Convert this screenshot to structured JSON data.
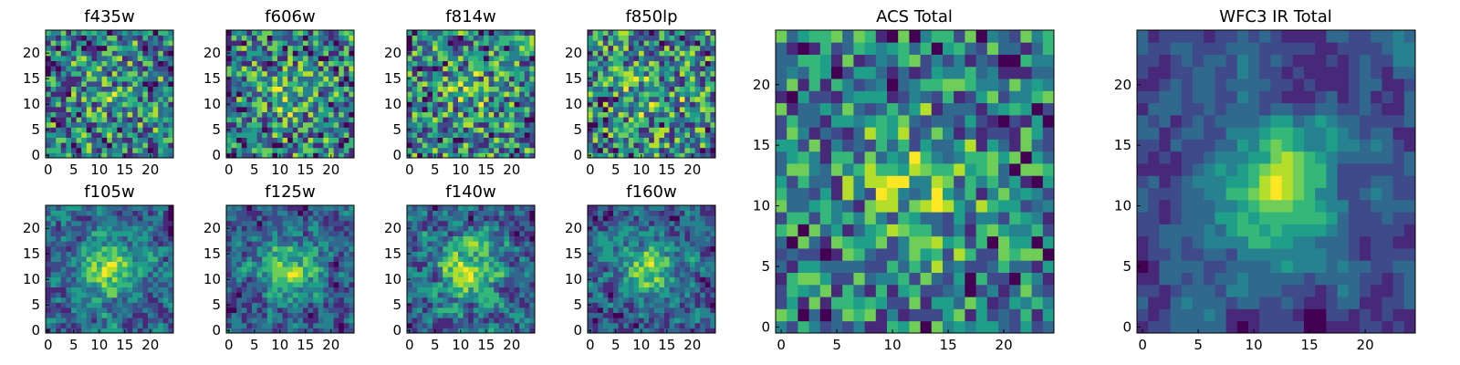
{
  "chart_data": [
    {
      "type": "heatmap",
      "title": "f435w",
      "x_ticks": [
        "0",
        "5",
        "10",
        "15",
        "20"
      ],
      "y_ticks": [
        "0",
        "5",
        "10",
        "15",
        "20"
      ],
      "xlim": [
        0,
        24
      ],
      "ylim": [
        0,
        24
      ],
      "grid_size": 25,
      "colormap": "viridis",
      "seed": 11,
      "smooth": 0,
      "radial": 0.2
    },
    {
      "type": "heatmap",
      "title": "f606w",
      "x_ticks": [
        "0",
        "5",
        "10",
        "15",
        "20"
      ],
      "y_ticks": [
        "0",
        "5",
        "10",
        "15",
        "20"
      ],
      "xlim": [
        0,
        24
      ],
      "ylim": [
        0,
        24
      ],
      "grid_size": 25,
      "colormap": "viridis",
      "seed": 23,
      "smooth": 0,
      "radial": 0.25
    },
    {
      "type": "heatmap",
      "title": "f814w",
      "x_ticks": [
        "0",
        "5",
        "10",
        "15",
        "20"
      ],
      "y_ticks": [
        "0",
        "5",
        "10",
        "15",
        "20"
      ],
      "xlim": [
        0,
        24
      ],
      "ylim": [
        0,
        24
      ],
      "grid_size": 25,
      "colormap": "viridis",
      "seed": 37,
      "smooth": 0,
      "radial": 0.2
    },
    {
      "type": "heatmap",
      "title": "f850lp",
      "x_ticks": [
        "0",
        "5",
        "10",
        "15",
        "20"
      ],
      "y_ticks": [
        "0",
        "5",
        "10",
        "15",
        "20"
      ],
      "xlim": [
        0,
        24
      ],
      "ylim": [
        0,
        24
      ],
      "grid_size": 25,
      "colormap": "viridis",
      "seed": 41,
      "smooth": 0,
      "radial": 0.15
    },
    {
      "type": "heatmap",
      "title": "f105w",
      "x_ticks": [
        "0",
        "5",
        "10",
        "15",
        "20"
      ],
      "y_ticks": [
        "0",
        "5",
        "10",
        "15",
        "20"
      ],
      "xlim": [
        0,
        24
      ],
      "ylim": [
        0,
        24
      ],
      "grid_size": 25,
      "colormap": "viridis",
      "seed": 53,
      "smooth": 1,
      "radial": 0.6
    },
    {
      "type": "heatmap",
      "title": "f125w",
      "x_ticks": [
        "0",
        "5",
        "10",
        "15",
        "20"
      ],
      "y_ticks": [
        "0",
        "5",
        "10",
        "15",
        "20"
      ],
      "xlim": [
        0,
        24
      ],
      "ylim": [
        0,
        24
      ],
      "grid_size": 25,
      "colormap": "viridis",
      "seed": 67,
      "smooth": 1,
      "radial": 0.55
    },
    {
      "type": "heatmap",
      "title": "f140w",
      "x_ticks": [
        "0",
        "5",
        "10",
        "15",
        "20"
      ],
      "y_ticks": [
        "0",
        "5",
        "10",
        "15",
        "20"
      ],
      "xlim": [
        0,
        24
      ],
      "ylim": [
        0,
        24
      ],
      "grid_size": 25,
      "colormap": "viridis",
      "seed": 71,
      "smooth": 1,
      "radial": 0.45
    },
    {
      "type": "heatmap",
      "title": "f160w",
      "x_ticks": [
        "0",
        "5",
        "10",
        "15",
        "20"
      ],
      "y_ticks": [
        "0",
        "5",
        "10",
        "15",
        "20"
      ],
      "xlim": [
        0,
        24
      ],
      "ylim": [
        0,
        24
      ],
      "grid_size": 25,
      "colormap": "viridis",
      "seed": 83,
      "smooth": 1,
      "radial": 0.6
    },
    {
      "type": "heatmap",
      "title": "ACS Total",
      "x_ticks": [
        "0",
        "5",
        "10",
        "15",
        "20"
      ],
      "y_ticks": [
        "0",
        "5",
        "10",
        "15",
        "20"
      ],
      "xlim": [
        0,
        24
      ],
      "ylim": [
        0,
        24
      ],
      "grid_size": 25,
      "colormap": "viridis",
      "seed": 97,
      "smooth": 0,
      "radial": 0.35
    },
    {
      "type": "heatmap",
      "title": "WFC3 IR Total",
      "x_ticks": [
        "0",
        "5",
        "10",
        "15",
        "20"
      ],
      "y_ticks": [
        "0",
        "5",
        "10",
        "15",
        "20"
      ],
      "xlim": [
        0,
        24
      ],
      "ylim": [
        0,
        24
      ],
      "grid_size": 25,
      "colormap": "viridis",
      "seed": 101,
      "smooth": 2,
      "radial": 0.75
    }
  ]
}
